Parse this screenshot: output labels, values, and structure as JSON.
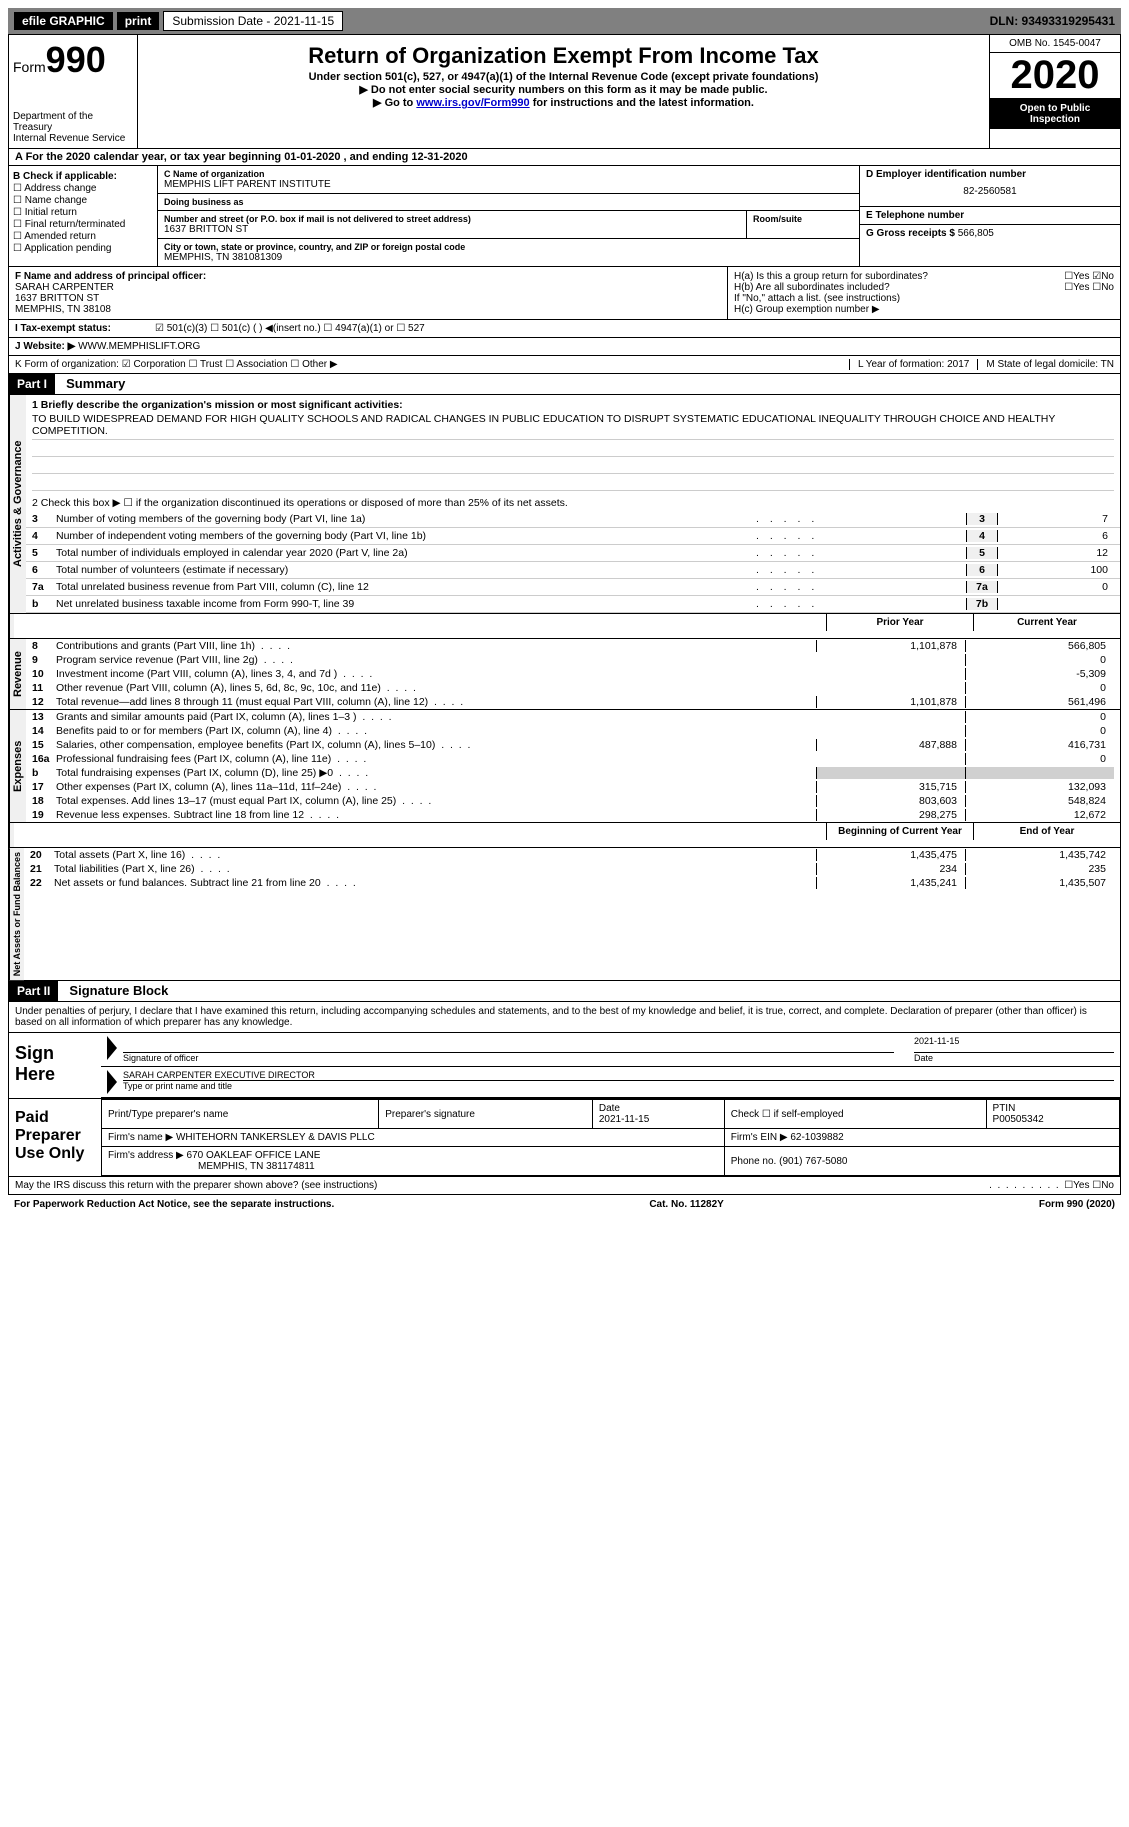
{
  "topbar": {
    "efile": "efile GRAPHIC",
    "print": "print",
    "sub_label": "Submission Date - 2021-11-15",
    "dln": "DLN: 93493319295431"
  },
  "header": {
    "form_word": "Form",
    "form_num": "990",
    "dept": "Department of the Treasury\nInternal Revenue Service",
    "title": "Return of Organization Exempt From Income Tax",
    "sub1": "Under section 501(c), 527, or 4947(a)(1) of the Internal Revenue Code (except private foundations)",
    "sub2": "▶ Do not enter social security numbers on this form as it may be made public.",
    "sub3_pre": "▶ Go to ",
    "sub3_link": "www.irs.gov/Form990",
    "sub3_post": " for instructions and the latest information.",
    "omb": "OMB No. 1545-0047",
    "year": "2020",
    "open": "Open to Public Inspection"
  },
  "rowA": "A For the 2020 calendar year, or tax year beginning 01-01-2020  , and ending 12-31-2020",
  "boxB": {
    "title": "B Check if applicable:",
    "items": [
      "☐ Address change",
      "☐ Name change",
      "☐ Initial return",
      "☐ Final return/terminated",
      "☐ Amended return",
      "☐ Application pending"
    ]
  },
  "boxC": {
    "name_label": "C Name of organization",
    "name": "MEMPHIS LIFT PARENT INSTITUTE",
    "dba_label": "Doing business as",
    "dba": "",
    "street_label": "Number and street (or P.O. box if mail is not delivered to street address)",
    "street": "1637 BRITTON ST",
    "room_label": "Room/suite",
    "city_label": "City or town, state or province, country, and ZIP or foreign postal code",
    "city": "MEMPHIS, TN  381081309"
  },
  "boxD": {
    "label": "D Employer identification number",
    "value": "82-2560581"
  },
  "boxE": {
    "label": "E Telephone number",
    "value": ""
  },
  "boxG": {
    "label": "G Gross receipts $",
    "value": "566,805"
  },
  "boxF": {
    "label": "F  Name and address of principal officer:",
    "name": "SARAH CARPENTER",
    "street": "1637 BRITTON ST",
    "city": "MEMPHIS, TN  38108"
  },
  "boxH": {
    "a": "H(a)  Is this a group return for subordinates?",
    "a_ans": "☐Yes ☑No",
    "b": "H(b)  Are all subordinates included?",
    "b_ans": "☐Yes ☐No",
    "b_note": "If \"No,\" attach a list. (see instructions)",
    "c": "H(c)  Group exemption number ▶"
  },
  "rowI": "I   Tax-exempt status:",
  "rowI_opts": "☑ 501(c)(3)   ☐ 501(c) (  ) ◀(insert no.)   ☐ 4947(a)(1) or   ☐ 527",
  "rowJ_label": "J  Website: ▶",
  "rowJ_val": "WWW.MEMPHISLIFT.ORG",
  "rowK": "K Form of organization:  ☑ Corporation  ☐ Trust  ☐ Association  ☐ Other ▶",
  "rowL": "L Year of formation: 2017",
  "rowM": "M State of legal domicile: TN",
  "part1": {
    "label": "Part I",
    "title": "Summary",
    "line1_label": "1  Briefly describe the organization's mission or most significant activities:",
    "mission": "TO BUILD WIDESPREAD DEMAND FOR HIGH QUALITY SCHOOLS AND RADICAL CHANGES IN PUBLIC EDUCATION TO DISRUPT SYSTEMATIC EDUCATIONAL INEQUALITY THROUGH CHOICE AND HEALTHY COMPETITION.",
    "line2": "2   Check this box ▶ ☐  if the organization discontinued its operations or disposed of more than 25% of its net assets."
  },
  "gov_lines": [
    {
      "n": "3",
      "d": "Number of voting members of the governing body (Part VI, line 1a)",
      "b": "3",
      "v": "7"
    },
    {
      "n": "4",
      "d": "Number of independent voting members of the governing body (Part VI, line 1b)",
      "b": "4",
      "v": "6"
    },
    {
      "n": "5",
      "d": "Total number of individuals employed in calendar year 2020 (Part V, line 2a)",
      "b": "5",
      "v": "12"
    },
    {
      "n": "6",
      "d": "Total number of volunteers (estimate if necessary)",
      "b": "6",
      "v": "100"
    },
    {
      "n": "7a",
      "d": "Total unrelated business revenue from Part VIII, column (C), line 12",
      "b": "7a",
      "v": "0"
    },
    {
      "n": "b",
      "d": "Net unrelated business taxable income from Form 990-T, line 39",
      "b": "7b",
      "v": ""
    }
  ],
  "col_headers": {
    "prior": "Prior Year",
    "current": "Current Year"
  },
  "revenue": [
    {
      "n": "8",
      "d": "Contributions and grants (Part VIII, line 1h)",
      "v1": "1,101,878",
      "v2": "566,805"
    },
    {
      "n": "9",
      "d": "Program service revenue (Part VIII, line 2g)",
      "v1": "",
      "v2": "0"
    },
    {
      "n": "10",
      "d": "Investment income (Part VIII, column (A), lines 3, 4, and 7d )",
      "v1": "",
      "v2": "-5,309"
    },
    {
      "n": "11",
      "d": "Other revenue (Part VIII, column (A), lines 5, 6d, 8c, 9c, 10c, and 11e)",
      "v1": "",
      "v2": "0"
    },
    {
      "n": "12",
      "d": "Total revenue—add lines 8 through 11 (must equal Part VIII, column (A), line 12)",
      "v1": "1,101,878",
      "v2": "561,496"
    }
  ],
  "expenses": [
    {
      "n": "13",
      "d": "Grants and similar amounts paid (Part IX, column (A), lines 1–3 )",
      "v1": "",
      "v2": "0"
    },
    {
      "n": "14",
      "d": "Benefits paid to or for members (Part IX, column (A), line 4)",
      "v1": "",
      "v2": "0"
    },
    {
      "n": "15",
      "d": "Salaries, other compensation, employee benefits (Part IX, column (A), lines 5–10)",
      "v1": "487,888",
      "v2": "416,731"
    },
    {
      "n": "16a",
      "d": "Professional fundraising fees (Part IX, column (A), line 11e)",
      "v1": "",
      "v2": "0"
    },
    {
      "n": "b",
      "d": "Total fundraising expenses (Part IX, column (D), line 25) ▶0",
      "v1": "shaded",
      "v2": "shaded"
    },
    {
      "n": "17",
      "d": "Other expenses (Part IX, column (A), lines 11a–11d, 11f–24e)",
      "v1": "315,715",
      "v2": "132,093"
    },
    {
      "n": "18",
      "d": "Total expenses. Add lines 13–17 (must equal Part IX, column (A), line 25)",
      "v1": "803,603",
      "v2": "548,824"
    },
    {
      "n": "19",
      "d": "Revenue less expenses. Subtract line 18 from line 12",
      "v1": "298,275",
      "v2": "12,672"
    }
  ],
  "net_headers": {
    "begin": "Beginning of Current Year",
    "end": "End of Year"
  },
  "netassets": [
    {
      "n": "20",
      "d": "Total assets (Part X, line 16)",
      "v1": "1,435,475",
      "v2": "1,435,742"
    },
    {
      "n": "21",
      "d": "Total liabilities (Part X, line 26)",
      "v1": "234",
      "v2": "235"
    },
    {
      "n": "22",
      "d": "Net assets or fund balances. Subtract line 21 from line 20",
      "v1": "1,435,241",
      "v2": "1,435,507"
    }
  ],
  "part2": {
    "label": "Part II",
    "title": "Signature Block",
    "decl": "Under penalties of perjury, I declare that I have examined this return, including accompanying schedules and statements, and to the best of my knowledge and belief, it is true, correct, and complete. Declaration of preparer (other than officer) is based on all information of which preparer has any knowledge."
  },
  "sign": {
    "here": "Sign Here",
    "sig_label": "Signature of officer",
    "date": "2021-11-15",
    "date_label": "Date",
    "name": "SARAH CARPENTER  EXECUTIVE DIRECTOR",
    "name_label": "Type or print name and title"
  },
  "paid": {
    "label": "Paid Preparer Use Only",
    "h1": "Print/Type preparer's name",
    "h2": "Preparer's signature",
    "h3": "Date",
    "h3v": "2021-11-15",
    "h4": "Check ☐ if self-employed",
    "h5": "PTIN",
    "h5v": "P00505342",
    "firm_label": "Firm's name    ▶",
    "firm": "WHITEHORN TANKERSLEY & DAVIS PLLC",
    "ein_label": "Firm's EIN ▶",
    "ein": "62-1039882",
    "addr_label": "Firm's address ▶",
    "addr": "670 OAKLEAF OFFICE LANE",
    "addr2": "MEMPHIS, TN  381174811",
    "phone_label": "Phone no.",
    "phone": "(901) 767-5080"
  },
  "may_discuss": "May the IRS discuss this return with the preparer shown above? (see instructions)",
  "may_ans": "☐Yes  ☐No",
  "footer": {
    "left": "For Paperwork Reduction Act Notice, see the separate instructions.",
    "mid": "Cat. No. 11282Y",
    "right": "Form 990 (2020)"
  },
  "vlabels": {
    "gov": "Activities & Governance",
    "rev": "Revenue",
    "exp": "Expenses",
    "net": "Net Assets or Fund Balances"
  }
}
